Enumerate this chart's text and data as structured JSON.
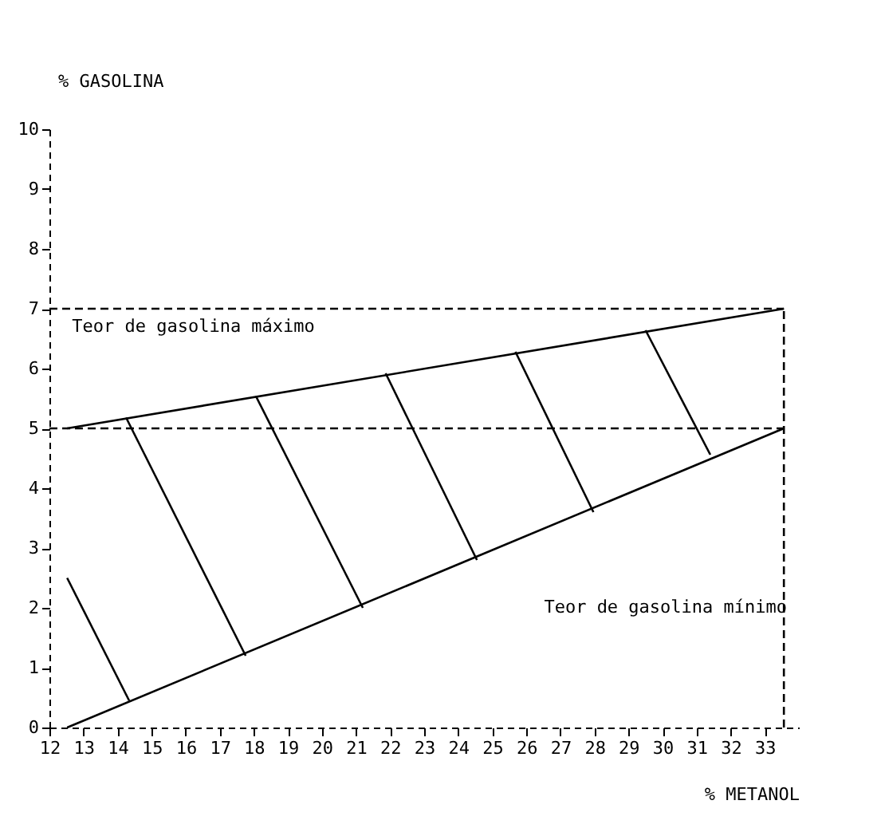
{
  "chart_data": {
    "type": "line",
    "xlabel": "% METANOL",
    "ylabel": "% GASOLINA",
    "xlim": [
      12,
      34
    ],
    "ylim": [
      0,
      10
    ],
    "xticks": [
      12,
      13,
      14,
      15,
      16,
      17,
      18,
      19,
      20,
      21,
      22,
      23,
      24,
      25,
      26,
      27,
      28,
      29,
      30,
      31,
      32,
      33
    ],
    "yticks": [
      0,
      1,
      2,
      3,
      4,
      5,
      6,
      7,
      8,
      9,
      10
    ],
    "grid": false,
    "marker": "none",
    "line_style": "solid",
    "series": [
      {
        "color": "#000000",
        "x": [
          12.52,
          33.56
        ],
        "values": [
          5,
          7
        ]
      },
      {
        "color": "#000000",
        "x": [
          12.52,
          33.56
        ],
        "values": [
          0,
          5
        ]
      },
      {
        "color": "#000000",
        "x": [
          12.52,
          14.34
        ],
        "values": [
          2.5,
          0.45
        ]
      },
      {
        "color": "#000000",
        "x": [
          14.25,
          17.76
        ],
        "values": [
          5.18,
          1.2
        ]
      },
      {
        "color": "#000000",
        "x": [
          18.06,
          21.2
        ],
        "values": [
          5.54,
          2.0
        ]
      },
      {
        "color": "#000000",
        "x": [
          21.87,
          24.55
        ],
        "values": [
          5.92,
          2.8
        ]
      },
      {
        "color": "#000000",
        "x": [
          25.68,
          27.97
        ],
        "values": [
          6.28,
          3.6
        ]
      },
      {
        "color": "#000000",
        "x": [
          29.5,
          31.4
        ],
        "values": [
          6.64,
          4.56
        ]
      },
      {
        "color": "#000000",
        "x": [
          33.56,
          33.56
        ],
        "values": [
          0,
          7
        ],
        "line_style": "dashed"
      }
    ],
    "ref_lines": [
      {
        "axis": "y",
        "value": 7,
        "color": "#000000",
        "line_style": "dashed"
      },
      {
        "axis": "y",
        "value": 5,
        "color": "#000000",
        "line_style": "dashed"
      }
    ],
    "annotations": [
      "Teor de gasolina máximo",
      "Teor de gasolina mínimo"
    ]
  }
}
